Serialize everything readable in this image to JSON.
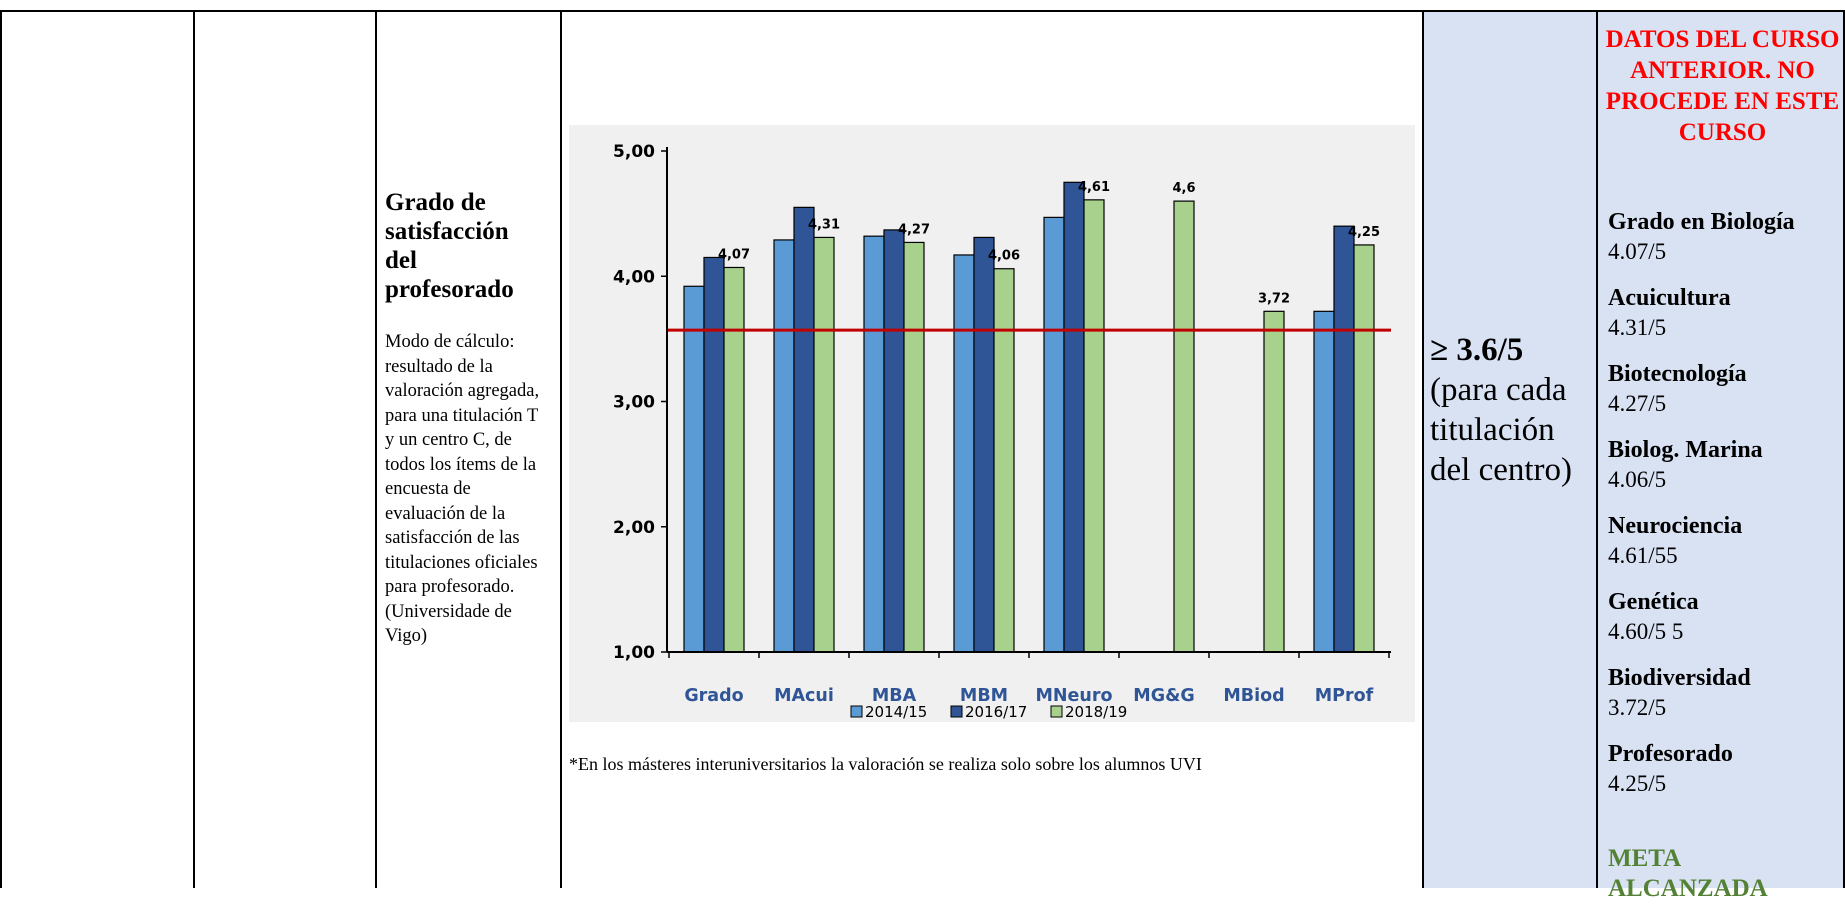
{
  "indicator": {
    "title": "Grado de satisfacción del profesorado",
    "description": "Modo de cálculo: resultado de la valoración agregada, para una titulación T y un centro C, de todos los ítems de la encuesta de evaluación de la satisfacción de las titulaciones oficiales para profesorado. (Universidade de Vigo)"
  },
  "note": "*En los másteres interuniversitarios la valoración se realiza solo sobre los alumnos UVI",
  "target": {
    "value": "≥ 3.6/5",
    "qualifier": "(para cada titulación del centro)"
  },
  "previous": {
    "heading": "DATOS DEL CURSO ANTERIOR. NO PROCEDE EN ESTE CURSO",
    "items": [
      {
        "name": "Grado en Biología",
        "value": "4.07/5"
      },
      {
        "name": "Acuicultura",
        "value": "4.31/5"
      },
      {
        "name": "Biotecnología",
        "value": "4.27/5"
      },
      {
        "name": "Biolog. Marina",
        "value": "4.06/5"
      },
      {
        "name": "Neurociencia",
        "value": "4.61/55"
      },
      {
        "name": "Genética",
        "value": "4.60/5 5"
      },
      {
        "name": "Biodiversidad",
        "value": "3.72/5"
      },
      {
        "name": "Profesorado",
        "value": "4.25/5"
      }
    ],
    "status": "META ALCANZADA"
  },
  "colors": {
    "s2014": "#5b9bd5",
    "s2016": "#2f5597",
    "s2018": "#a9d18e",
    "target_line": "#c00000",
    "category_label": "#2f5597",
    "status": "#538135",
    "heading": "#ff0000"
  },
  "chart_data": {
    "type": "bar",
    "categories": [
      "Grado",
      "MAcui",
      "MBA",
      "MBM",
      "MNeuro",
      "MG&G",
      "MBiod",
      "MProf"
    ],
    "series": [
      {
        "name": "2014/15",
        "values": [
          3.92,
          4.29,
          4.32,
          4.17,
          4.47,
          null,
          null,
          3.72
        ]
      },
      {
        "name": "2016/17",
        "values": [
          4.15,
          4.55,
          4.37,
          4.31,
          4.75,
          null,
          null,
          4.4
        ]
      },
      {
        "name": "2018/19",
        "values": [
          4.07,
          4.31,
          4.27,
          4.06,
          4.61,
          4.6,
          3.72,
          4.25
        ]
      }
    ],
    "data_labels": [
      "4,07",
      "4,31",
      "4,27",
      "4,06",
      "4,61",
      "4,6",
      "3,72",
      "4,25"
    ],
    "y_ticks": [
      "1,00",
      "2,00",
      "3,00",
      "4,00",
      "5,00"
    ],
    "ylim": [
      1,
      5
    ],
    "target_line": 3.57,
    "legend_position": "bottom"
  }
}
